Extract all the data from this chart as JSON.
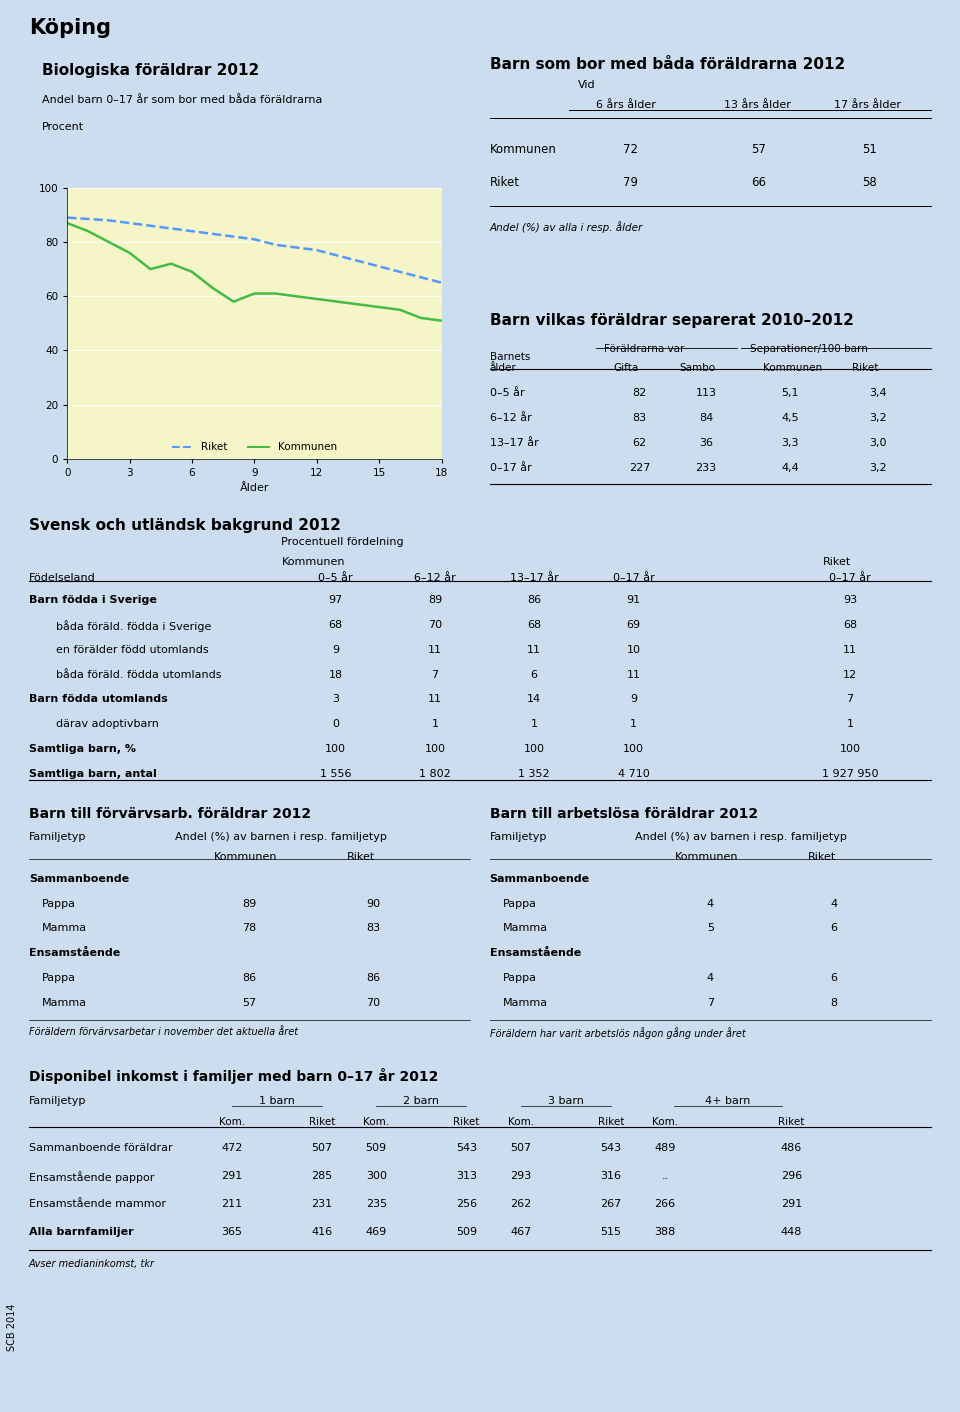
{
  "page_title": "Köping",
  "bg_color": "#ccddef",
  "bio_title": "Biologiska föräldrar 2012",
  "bio_subtitle1": "Andel barn 0–17 år som bor med båda föräldrarna",
  "bio_subtitle2": "Procent",
  "riket_line": [
    89,
    88.5,
    88,
    87,
    86,
    85,
    84,
    83,
    82,
    81,
    79,
    78,
    77,
    75,
    73,
    71,
    69,
    67,
    65
  ],
  "kommun_line": [
    87,
    84,
    80,
    76,
    70,
    72,
    69,
    63,
    58,
    61,
    61,
    60,
    59,
    58,
    57,
    56,
    55,
    52,
    51
  ],
  "line_x": [
    0,
    1,
    2,
    3,
    4,
    5,
    6,
    7,
    8,
    9,
    10,
    11,
    12,
    13,
    14,
    15,
    16,
    17,
    18
  ],
  "barn_title": "Barn som bor med båda föräldrarna 2012",
  "barn_rows": [
    [
      "Kommunen",
      "72",
      "57",
      "51"
    ],
    [
      "Riket",
      "79",
      "66",
      "58"
    ]
  ],
  "barn_footnote": "Andel (%) av alla i resp. ålder",
  "sep_title": "Barn vilkas föräldrar separerat 2010–2012",
  "sep_rows": [
    [
      "0–5 år",
      "82",
      "113",
      "5,1",
      "3,4"
    ],
    [
      "6–12 år",
      "83",
      "84",
      "4,5",
      "3,2"
    ],
    [
      "13–17 år",
      "62",
      "36",
      "3,3",
      "3,0"
    ],
    [
      "0–17 år",
      "227",
      "233",
      "4,4",
      "3,2"
    ]
  ],
  "svensk_title": "Svensk och utländsk bakgrund 2012",
  "svensk_sub": "Procentuell fördelning",
  "svensk_kommunen": "Kommunen",
  "svensk_riket": "Riket",
  "svensk_col_headers": [
    "0–5 år",
    "6–12 år",
    "13–17 år",
    "0–17 år",
    "0‗17 år"
  ],
  "svensk_rows": [
    [
      "Barn födda i Sverige",
      "97",
      "89",
      "86",
      "91",
      "93",
      true
    ],
    [
      "båda föräld. födda i Sverige",
      "68",
      "70",
      "68",
      "69",
      "68",
      false
    ],
    [
      "en förälder född utomlands",
      "9",
      "11",
      "11",
      "10",
      "11",
      false
    ],
    [
      "båda föräld. födda utomlands",
      "18",
      "7",
      "6",
      "11",
      "12",
      false
    ],
    [
      "Barn födda utomlands",
      "3",
      "11",
      "14",
      "9",
      "7",
      true
    ],
    [
      "därav adoptivbarn",
      "0",
      "1",
      "1",
      "1",
      "1",
      false
    ],
    [
      "Samtliga barn, %",
      "100",
      "100",
      "100",
      "100",
      "100",
      true
    ],
    [
      "Samtliga barn, antal",
      "1 556",
      "1 802",
      "1 352",
      "4 710",
      "1 927 950",
      true
    ]
  ],
  "forvarv_title": "Barn till förvärvsarb. föräldrar 2012",
  "forvarv_rows": [
    [
      "Sammanboende",
      "",
      "",
      true
    ],
    [
      "Pappa",
      "89",
      "90",
      false
    ],
    [
      "Mamma",
      "78",
      "83",
      false
    ],
    [
      "Ensamstående",
      "",
      "",
      true
    ],
    [
      "Pappa",
      "86",
      "86",
      false
    ],
    [
      "Mamma",
      "57",
      "70",
      false
    ]
  ],
  "forvarv_footnote": "Föräldern förvärvsarbetar i november det aktuella året",
  "arbetslos_title": "Barn till arbetslösa föräldrar 2012",
  "arbetslos_rows": [
    [
      "Sammanboende",
      "",
      "",
      true
    ],
    [
      "Pappa",
      "4",
      "4",
      false
    ],
    [
      "Mamma",
      "5",
      "6",
      false
    ],
    [
      "Ensamstående",
      "",
      "",
      true
    ],
    [
      "Pappa",
      "4",
      "6",
      false
    ],
    [
      "Mamma",
      "7",
      "8",
      false
    ]
  ],
  "arbetslos_footnote": "Föräldern har varit arbetslös någon gång under året",
  "inkomst_title": "Disponibel inkomst i familjer med barn 0–17 år 2012",
  "inkomst_rows": [
    [
      "Sammanboende föräldrar",
      "472",
      "507",
      "509",
      "543",
      "507",
      "543",
      "489",
      "486"
    ],
    [
      "Ensamstående pappor",
      "291",
      "285",
      "300",
      "313",
      "293",
      "316",
      "..",
      "296"
    ],
    [
      "Ensamstående mammor",
      "211",
      "231",
      "235",
      "256",
      "262",
      "267",
      "266",
      "291"
    ],
    [
      "Alla barnfamiljer",
      "365",
      "416",
      "469",
      "509",
      "467",
      "515",
      "388",
      "448"
    ]
  ],
  "inkomst_footnote": "Avser medianinkomst, tkr",
  "scb_label": "SCB 2014"
}
